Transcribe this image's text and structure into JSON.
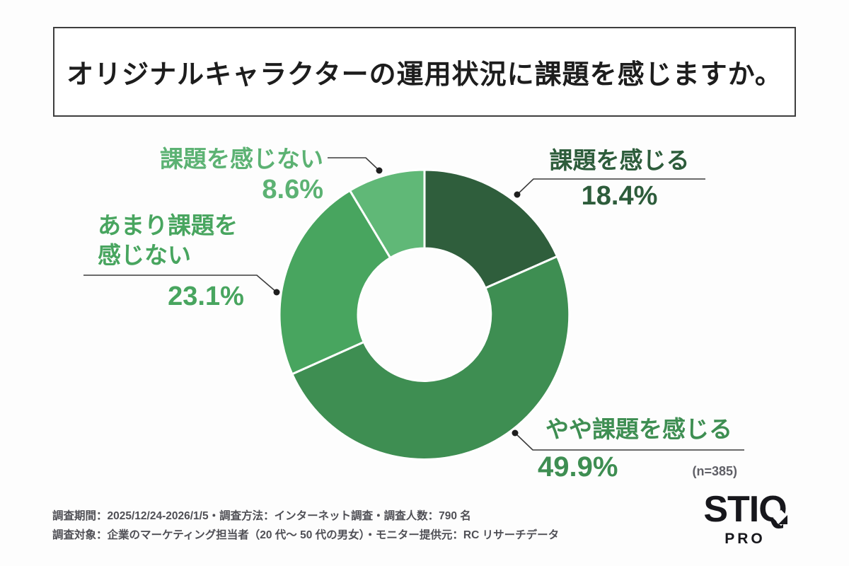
{
  "title": "オリジナルキャラクターの運用状況に課題を感じますか。",
  "chart_data": {
    "type": "pie",
    "subtype": "donut",
    "title": "オリジナルキャラクターの運用状況に課題を感じますか。",
    "categories": [
      "課題を感じる",
      "やや課題を感じる",
      "あまり課題を感じない",
      "課題を感じない"
    ],
    "values": [
      18.4,
      49.9,
      23.1,
      8.6
    ],
    "unit": "%",
    "sample_size": 385,
    "sample_size_note": "(n=385)",
    "start_angle_deg": 0,
    "direction": "clockwise",
    "donut_hole_ratio": 0.46,
    "segment_colors": [
      "#2F5E3C",
      "#3E8E52",
      "#48A55F",
      "#60B877"
    ],
    "legend_position": "callouts"
  },
  "callouts": [
    {
      "label": "課題を感じる",
      "pct": "18.4%",
      "color": "#2D5C3B"
    },
    {
      "label": "やや課題を感じる",
      "pct": "49.9%",
      "color": "#3E8E52"
    },
    {
      "label": "あまり課題を\n感じない",
      "pct": "23.1%",
      "color": "#48A55F"
    },
    {
      "label": "課題を感じない",
      "pct": "8.6%",
      "color": "#5CB273"
    }
  ],
  "n_note": "(n=385)",
  "footer": {
    "line1": "調査期間：2025/12/24-2026/1/5・調査方法：インターネット調査・調査人数：790 名",
    "line2": "調査対象：企業のマーケティング担当者（20 代～ 50 代の男女）・モニター提供元：RC リサーチデータ"
  },
  "logo": {
    "name": "STIQ",
    "sub": "PRO"
  }
}
